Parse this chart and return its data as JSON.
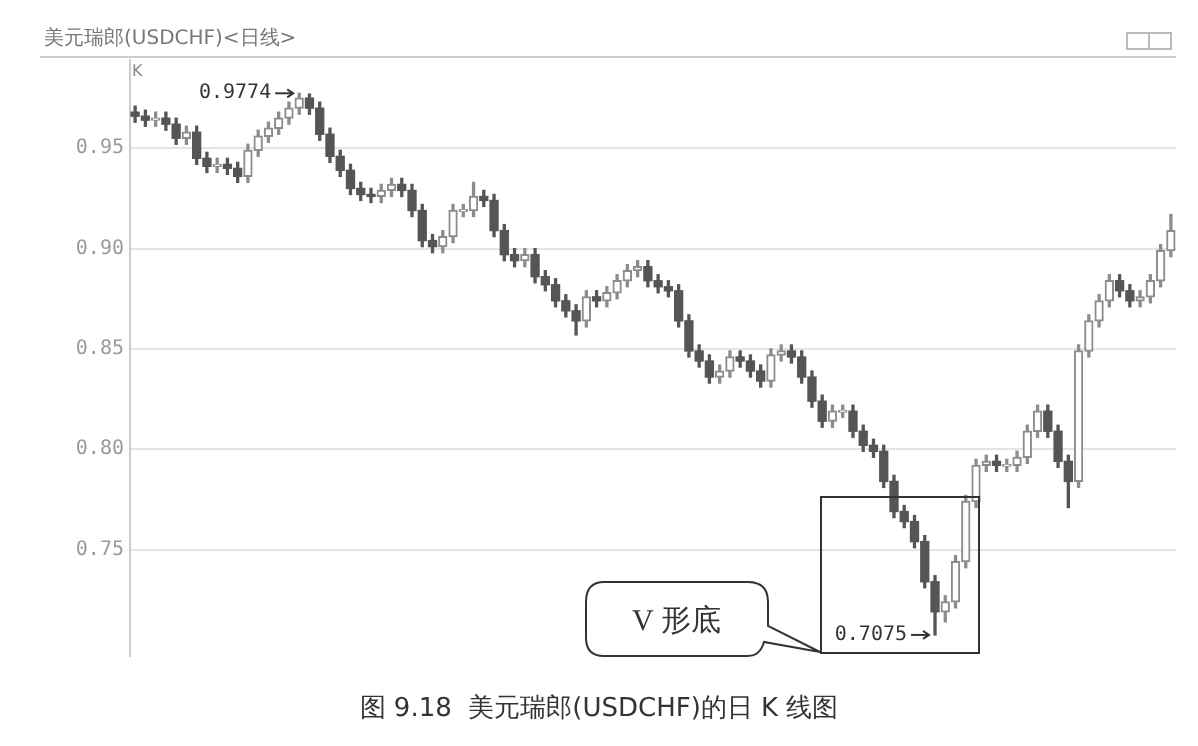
{
  "chart_data": {
    "type": "candlestick",
    "title": "美元瑞郎(USDCHF)<日线>",
    "categories": [
      null,
      null,
      null,
      null,
      null,
      null,
      null,
      null,
      null,
      null,
      null,
      null,
      null,
      null,
      null,
      null,
      null,
      null,
      null,
      null,
      null,
      null,
      null,
      null,
      null,
      null,
      null,
      null,
      null,
      null,
      null,
      null,
      null,
      null,
      null,
      null,
      null,
      null,
      null,
      null,
      null,
      null,
      null,
      null,
      null,
      null,
      null,
      null,
      null,
      null,
      null,
      null,
      null,
      null,
      null,
      null,
      null,
      null,
      null,
      null,
      null,
      null,
      null,
      null,
      null,
      null,
      null,
      null,
      null,
      null,
      null,
      null,
      null,
      null,
      null,
      null,
      null,
      null,
      null,
      null,
      null,
      null,
      null,
      null,
      null,
      null,
      null,
      null,
      null,
      null,
      null,
      null,
      null,
      null,
      null,
      null,
      null,
      null,
      null,
      null,
      null,
      null
    ],
    "colors": [
      "#555555",
      "#555555",
      "#8c8c8c",
      "#555555",
      "#555555",
      "#8c8c8c",
      "#555555",
      "#555555",
      "#8c8c8c",
      "#555555",
      "#555555",
      "#8c8c8c",
      "#8c8c8c",
      "#8c8c8c",
      "#8c8c8c",
      "#8c8c8c",
      "#8c8c8c",
      "#555555",
      "#555555",
      "#555555",
      "#555555",
      "#555555",
      "#555555",
      "#555555",
      "#8c8c8c",
      "#8c8c8c",
      "#555555",
      "#555555",
      "#555555",
      "#555555",
      "#8c8c8c",
      "#8c8c8c",
      "#8c8c8c",
      "#8c8c8c",
      "#555555",
      "#555555",
      "#555555",
      "#555555",
      "#8c8c8c",
      "#555555",
      "#555555",
      "#555555",
      "#555555",
      "#555555",
      "#8c8c8c",
      "#555555",
      "#8c8c8c",
      "#8c8c8c",
      "#8c8c8c",
      "#8c8c8c",
      "#555555",
      "#555555",
      "#555555",
      "#555555",
      "#555555",
      "#555555",
      "#555555",
      "#8c8c8c",
      "#8c8c8c",
      "#555555",
      "#555555",
      "#555555",
      "#8c8c8c",
      "#8c8c8c",
      "#555555",
      "#555555",
      "#555555",
      "#555555",
      "#8c8c8c",
      "#8c8c8c",
      "#555555",
      "#555555",
      "#555555",
      "#555555",
      "#555555",
      "#555555",
      "#555555",
      "#555555",
      "#555555",
      "#8c8c8c",
      "#8c8c8c",
      "#8c8c8c",
      "#8c8c8c",
      "#8c8c8c",
      "#555555",
      "#8c8c8c",
      "#8c8c8c",
      "#8c8c8c",
      "#8c8c8c",
      "#555555",
      "#555555",
      "#555555",
      "#8c8c8c",
      "#8c8c8c",
      "#8c8c8c",
      "#8c8c8c",
      "#555555",
      "#555555",
      "#8c8c8c",
      "#8c8c8c",
      "#8c8c8c",
      "#8c8c8c"
    ],
    "ohlc": [
      [
        0.968,
        0.971,
        0.963,
        0.966
      ],
      [
        0.966,
        0.969,
        0.961,
        0.964
      ],
      [
        0.964,
        0.968,
        0.961,
        0.965
      ],
      [
        0.965,
        0.968,
        0.959,
        0.962
      ],
      [
        0.962,
        0.965,
        0.952,
        0.955
      ],
      [
        0.955,
        0.961,
        0.952,
        0.958
      ],
      [
        0.958,
        0.961,
        0.942,
        0.945
      ],
      [
        0.945,
        0.948,
        0.938,
        0.941
      ],
      [
        0.941,
        0.945,
        0.938,
        0.942
      ],
      [
        0.942,
        0.945,
        0.937,
        0.94
      ],
      [
        0.94,
        0.943,
        0.933,
        0.936
      ],
      [
        0.936,
        0.952,
        0.933,
        0.949
      ],
      [
        0.949,
        0.959,
        0.946,
        0.956
      ],
      [
        0.956,
        0.963,
        0.953,
        0.96
      ],
      [
        0.96,
        0.968,
        0.957,
        0.965
      ],
      [
        0.965,
        0.973,
        0.962,
        0.97
      ],
      [
        0.97,
        0.9774,
        0.967,
        0.975
      ],
      [
        0.975,
        0.977,
        0.967,
        0.97
      ],
      [
        0.97,
        0.973,
        0.954,
        0.957
      ],
      [
        0.957,
        0.96,
        0.943,
        0.946
      ],
      [
        0.946,
        0.949,
        0.936,
        0.939
      ],
      [
        0.939,
        0.942,
        0.927,
        0.93
      ],
      [
        0.93,
        0.933,
        0.924,
        0.927
      ],
      [
        0.927,
        0.93,
        0.923,
        0.926
      ],
      [
        0.926,
        0.932,
        0.923,
        0.929
      ],
      [
        0.929,
        0.935,
        0.926,
        0.932
      ],
      [
        0.932,
        0.935,
        0.926,
        0.929
      ],
      [
        0.929,
        0.932,
        0.916,
        0.919
      ],
      [
        0.919,
        0.922,
        0.901,
        0.904
      ],
      [
        0.904,
        0.907,
        0.898,
        0.901
      ],
      [
        0.901,
        0.909,
        0.898,
        0.906
      ],
      [
        0.906,
        0.922,
        0.903,
        0.919
      ],
      [
        0.919,
        0.922,
        0.916,
        0.919
      ],
      [
        0.919,
        0.933,
        0.916,
        0.926
      ],
      [
        0.926,
        0.929,
        0.921,
        0.924
      ],
      [
        0.924,
        0.927,
        0.906,
        0.909
      ],
      [
        0.909,
        0.912,
        0.894,
        0.897
      ],
      [
        0.897,
        0.9,
        0.891,
        0.894
      ],
      [
        0.894,
        0.9,
        0.891,
        0.897
      ],
      [
        0.897,
        0.9,
        0.883,
        0.886
      ],
      [
        0.886,
        0.889,
        0.879,
        0.882
      ],
      [
        0.882,
        0.885,
        0.871,
        0.874
      ],
      [
        0.874,
        0.877,
        0.866,
        0.869
      ],
      [
        0.869,
        0.872,
        0.857,
        0.864
      ],
      [
        0.864,
        0.879,
        0.861,
        0.876
      ],
      [
        0.876,
        0.879,
        0.871,
        0.874
      ],
      [
        0.874,
        0.881,
        0.871,
        0.878
      ],
      [
        0.878,
        0.887,
        0.875,
        0.884
      ],
      [
        0.884,
        0.892,
        0.881,
        0.889
      ],
      [
        0.889,
        0.894,
        0.886,
        0.891
      ],
      [
        0.891,
        0.894,
        0.881,
        0.884
      ],
      [
        0.884,
        0.887,
        0.878,
        0.881
      ],
      [
        0.881,
        0.884,
        0.876,
        0.879
      ],
      [
        0.879,
        0.882,
        0.861,
        0.864
      ],
      [
        0.864,
        0.867,
        0.846,
        0.849
      ],
      [
        0.849,
        0.852,
        0.841,
        0.844
      ],
      [
        0.844,
        0.847,
        0.833,
        0.836
      ],
      [
        0.836,
        0.842,
        0.833,
        0.839
      ],
      [
        0.839,
        0.849,
        0.836,
        0.846
      ],
      [
        0.846,
        0.849,
        0.841,
        0.844
      ],
      [
        0.844,
        0.847,
        0.836,
        0.839
      ],
      [
        0.839,
        0.842,
        0.831,
        0.834
      ],
      [
        0.834,
        0.85,
        0.831,
        0.847
      ],
      [
        0.847,
        0.852,
        0.844,
        0.849
      ],
      [
        0.849,
        0.852,
        0.843,
        0.846
      ],
      [
        0.846,
        0.849,
        0.833,
        0.836
      ],
      [
        0.836,
        0.839,
        0.821,
        0.824
      ],
      [
        0.824,
        0.827,
        0.811,
        0.814
      ],
      [
        0.814,
        0.822,
        0.811,
        0.819
      ],
      [
        0.819,
        0.822,
        0.816,
        0.819
      ],
      [
        0.819,
        0.822,
        0.806,
        0.809
      ],
      [
        0.809,
        0.812,
        0.799,
        0.802
      ],
      [
        0.802,
        0.805,
        0.796,
        0.799
      ],
      [
        0.799,
        0.802,
        0.781,
        0.784
      ],
      [
        0.784,
        0.787,
        0.766,
        0.769
      ],
      [
        0.769,
        0.772,
        0.761,
        0.764
      ],
      [
        0.764,
        0.767,
        0.751,
        0.754
      ],
      [
        0.754,
        0.757,
        0.731,
        0.734
      ],
      [
        0.734,
        0.737,
        0.7075,
        0.719
      ],
      [
        0.719,
        0.727,
        0.714,
        0.724
      ],
      [
        0.724,
        0.747,
        0.721,
        0.744
      ],
      [
        0.744,
        0.777,
        0.741,
        0.774
      ],
      [
        0.774,
        0.795,
        0.771,
        0.792
      ],
      [
        0.792,
        0.797,
        0.789,
        0.794
      ],
      [
        0.794,
        0.797,
        0.789,
        0.792
      ],
      [
        0.792,
        0.795,
        0.789,
        0.792
      ],
      [
        0.792,
        0.799,
        0.789,
        0.796
      ],
      [
        0.796,
        0.812,
        0.793,
        0.809
      ],
      [
        0.809,
        0.822,
        0.806,
        0.819
      ],
      [
        0.819,
        0.822,
        0.806,
        0.809
      ],
      [
        0.809,
        0.812,
        0.791,
        0.794
      ],
      [
        0.794,
        0.797,
        0.771,
        0.784
      ],
      [
        0.784,
        0.852,
        0.781,
        0.849
      ],
      [
        0.849,
        0.867,
        0.846,
        0.864
      ],
      [
        0.864,
        0.877,
        0.861,
        0.874
      ],
      [
        0.874,
        0.887,
        0.871,
        0.884
      ],
      [
        0.884,
        0.887,
        0.876,
        0.879
      ],
      [
        0.879,
        0.882,
        0.871,
        0.874
      ],
      [
        0.874,
        0.879,
        0.871,
        0.876
      ],
      [
        0.876,
        0.887,
        0.873,
        0.884
      ],
      [
        0.884,
        0.902,
        0.881,
        0.899
      ],
      [
        0.899,
        0.917,
        0.896,
        0.909
      ]
    ],
    "ylim": [
      0.697,
      0.994
    ],
    "yticks": [
      0.95,
      {
        "value": 0.9,
        "label": "0.90"
      },
      0.85,
      {
        "value": 0.8,
        "label": "0.80"
      },
      0.75
    ],
    "grid": "y",
    "annotations": [
      "0.9774",
      "0.7075",
      "K",
      "V 形底",
      "图 9.18  美元瑞郎(USDCHF)的日 K 线图"
    ]
  }
}
